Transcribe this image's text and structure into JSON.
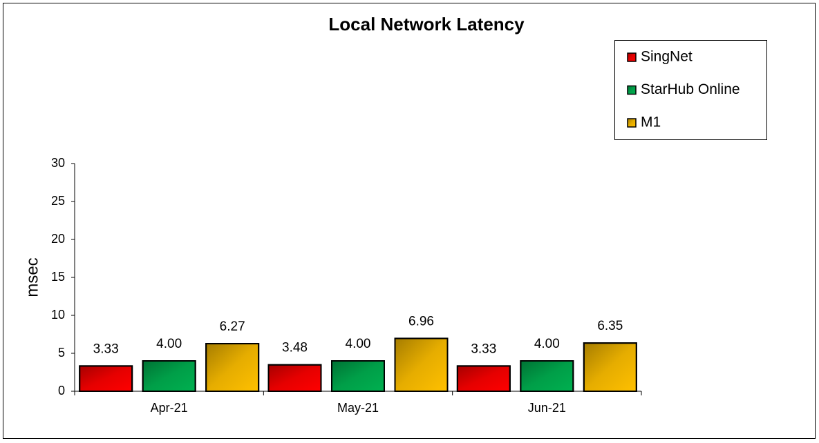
{
  "chart_data": {
    "type": "bar",
    "title": "Local Network Latency",
    "y_label": "msec",
    "categories": [
      "Apr-21",
      "May-21",
      "Jun-21"
    ],
    "series": [
      {
        "name": "SingNet",
        "color": "#ff0000",
        "values": [
          3.33,
          3.48,
          3.33
        ],
        "value_labels": [
          "3.33",
          "3.48",
          "3.33"
        ]
      },
      {
        "name": "StarHub Online",
        "color": "#00b050",
        "values": [
          4,
          4,
          4
        ],
        "value_labels": [
          "4.00",
          "4.00",
          "4.00"
        ]
      },
      {
        "name": "M1",
        "color": "#ffc000",
        "values": [
          6.27,
          6.96,
          6.35
        ],
        "value_labels": [
          "6.27",
          "6.96",
          "6.35"
        ]
      }
    ],
    "ylim": [
      0,
      30
    ],
    "yticks": [
      0,
      5,
      10,
      15,
      20,
      25,
      30
    ],
    "legend": "upper right"
  }
}
